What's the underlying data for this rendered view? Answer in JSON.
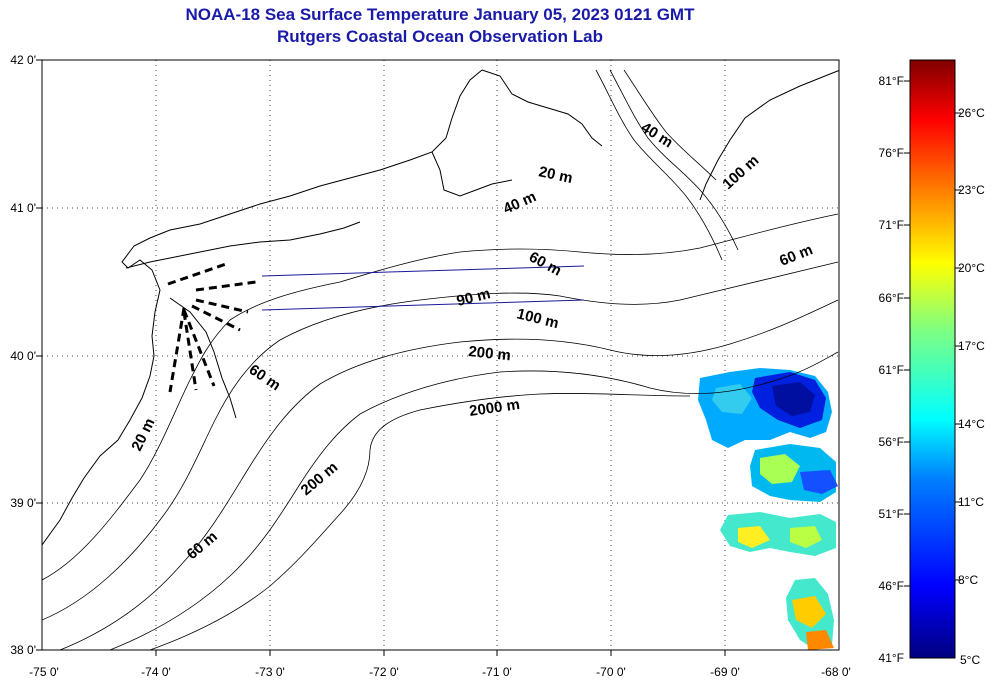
{
  "title": "NOAA-18 Sea Surface Temperature January 05, 2023 0121 GMT",
  "subtitle": "Rutgers Coastal Ocean Observation Lab",
  "map": {
    "lon_labels": [
      "-75 0'",
      "-74 0'",
      "-73 0'",
      "-72 0'",
      "-71 0'",
      "-70 0'",
      "-69 0'",
      "-68 0'"
    ],
    "lat_labels": [
      "42 0'",
      "41 0'",
      "40 0'",
      "39 0'",
      "38 0'"
    ],
    "contour_labels": [
      "20 m",
      "40 m",
      "40 m",
      "100 m",
      "60 m",
      "60 m",
      "90 m",
      "100 m",
      "200 m",
      "60 m",
      "2000 m",
      "20 m",
      "200 m",
      "60 m"
    ]
  },
  "colorbar": {
    "fahrenheit_labels": [
      "81°F",
      "76°F",
      "71°F",
      "66°F",
      "61°F",
      "56°F",
      "51°F",
      "46°F",
      "41°F"
    ],
    "celsius_labels": [
      "26°C",
      "23°C",
      "20°C",
      "17°C",
      "14°C",
      "11°C",
      "8°C",
      "5°C"
    ],
    "range_celsius": [
      5,
      27.2
    ]
  },
  "colors": {
    "title": "#1a1aa8",
    "shipping_lanes": "#1a1a9a",
    "colormap": [
      "#000080",
      "#0000ff",
      "#0080ff",
      "#00ffff",
      "#80ff80",
      "#ffff00",
      "#ff8000",
      "#ff0000",
      "#800000"
    ]
  }
}
